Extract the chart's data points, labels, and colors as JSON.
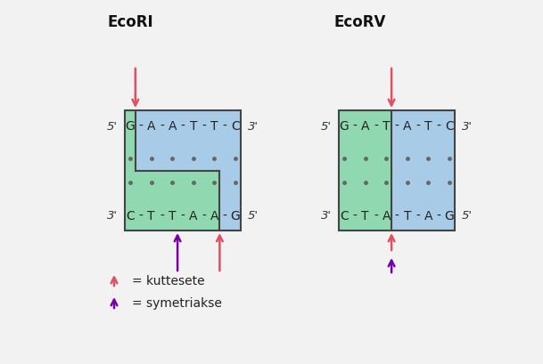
{
  "ecori_label": "EcoRI",
  "ecorv_label": "EcoRV",
  "ecori_top_seq": [
    "G",
    "A",
    "A",
    "T",
    "T",
    "C"
  ],
  "ecori_bot_seq": [
    "C",
    "T",
    "T",
    "A",
    "A",
    "G"
  ],
  "ecorv_top_seq": [
    "G",
    "A",
    "T",
    "A",
    "T",
    "C"
  ],
  "ecorv_bot_seq": [
    "C",
    "T",
    "A",
    "T",
    "A",
    "G"
  ],
  "color_green": "#90d9b0",
  "color_blue": "#a8cce8",
  "color_border": "#444444",
  "color_red_arrow": "#e05060",
  "color_purple_arrow": "#7700aa",
  "legend_kuttesete": "= kuttesete",
  "legend_symetriakse": "= symetriakse",
  "bg_color": "#f2f2f2"
}
